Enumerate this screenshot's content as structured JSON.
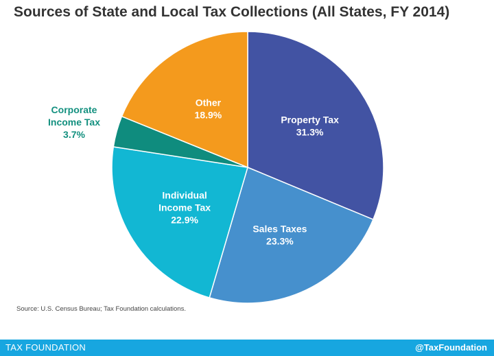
{
  "chart_data": {
    "type": "pie",
    "title": "Sources of State and Local Tax Collections (All States, FY 2014)",
    "slices": [
      {
        "label": [
          "Property Tax"
        ],
        "value": 31.3,
        "display": "31.3%",
        "color": "#4253a3",
        "label_color": "#ffffff"
      },
      {
        "label": [
          "Sales Taxes"
        ],
        "value": 23.3,
        "display": "23.3%",
        "color": "#4690cd",
        "label_color": "#ffffff"
      },
      {
        "label": [
          "Individual",
          "Income Tax"
        ],
        "value": 22.9,
        "display": "22.9%",
        "color": "#12b7d3",
        "label_color": "#ffffff"
      },
      {
        "label": [
          "Corporate",
          "Income Tax"
        ],
        "value": 3.7,
        "display": "3.7%",
        "color": "#0f8c7e",
        "label_color": "#13907f"
      },
      {
        "label": [
          "Other"
        ],
        "value": 18.9,
        "display": "18.9%",
        "color": "#f49a1d",
        "label_color": "#ffffff"
      }
    ]
  },
  "source": "Source: U.S. Census Bureau; Tax Foundation calculations.",
  "footer": {
    "left": "TAX FOUNDATION",
    "right": "@TaxFoundation"
  }
}
